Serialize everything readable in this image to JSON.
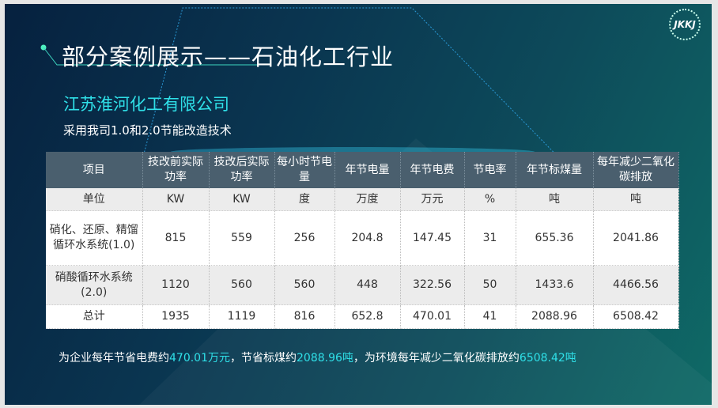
{
  "slide": {
    "title": "部分案例展示——石油化工行业",
    "logo_text": "JKKJ",
    "company": "江苏淮河化工有限公司",
    "subtitle": "采用我司1.0和2.0节能改造技术"
  },
  "table": {
    "headers": [
      "项目",
      "技改前实际功率",
      "技改后实际功率",
      "每小时节电量",
      "年节电量",
      "年节电费",
      "节电率",
      "年节标煤量",
      "每年减少二氧化碳排放"
    ],
    "rows": [
      [
        "单位",
        "KW",
        "KW",
        "度",
        "万度",
        "万元",
        "%",
        "吨",
        "吨"
      ],
      [
        "硝化、还原、精馏循环水系统(1.0)",
        "815",
        "559",
        "256",
        "204.8",
        "147.45",
        "31",
        "655.36",
        "2041.86"
      ],
      [
        "硝酸循环水系统 (2.0)",
        "1120",
        "560",
        "560",
        "448",
        "322.56",
        "50",
        "1433.6",
        "4466.56"
      ],
      [
        "总计",
        "1935",
        "1119",
        "816",
        "652.8",
        "470.01",
        "41",
        "2088.96",
        "6508.42"
      ]
    ]
  },
  "footer": {
    "p1": "为企业每年节省电费约",
    "v1": "470.01万元",
    "p2": "，节省标煤约",
    "v2": "2088.96吨",
    "p3": "，为环境每年减少二氧化碳排放约",
    "v3": "6508.42吨"
  },
  "colors": {
    "accent": "#2fe0e8",
    "header_bg": "#4a5f6e"
  }
}
